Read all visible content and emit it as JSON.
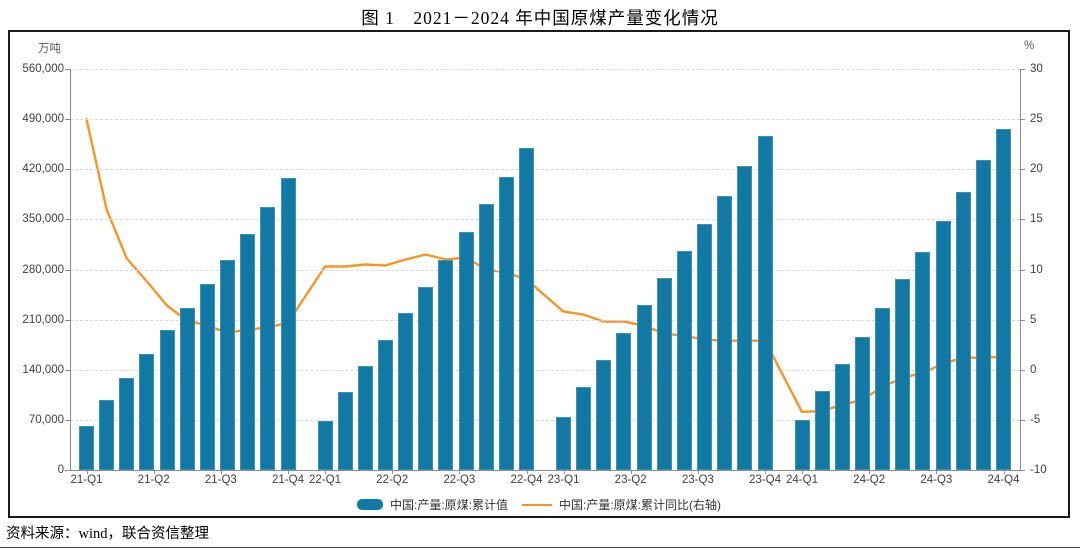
{
  "title": "图 1　2021－2024 年中国原煤产量变化情况",
  "source": "资料来源：wind，联合资信整理",
  "legend": {
    "bar_label": "中国:产量:原煤:累计值",
    "line_label": "中国:产量:原煤:累计同比(右轴)"
  },
  "chart_data": {
    "type": "bar",
    "subtype": "bar+line combo, monthly cumulative values grouped by year",
    "title": "图 1　2021－2024 年中国原煤产量变化情况",
    "grid": "horizontal dashed",
    "legend_position": "bottom center",
    "years": [
      "2021",
      "2022",
      "2023",
      "2024"
    ],
    "points_per_year": 11,
    "left_axis": {
      "title": "万吨",
      "min": 0,
      "max": 560000,
      "step": 70000,
      "tick_labels": [
        "560,000",
        "490,000",
        "420,000",
        "350,000",
        "280,000",
        "210,000",
        "140,000",
        "70,000",
        "0"
      ]
    },
    "right_axis": {
      "title": "%",
      "min": -10,
      "max": 30,
      "step": 5,
      "tick_labels": [
        "30",
        "25",
        "20",
        "15",
        "10",
        "5",
        "0",
        "-5",
        "-10"
      ]
    },
    "x_tick_labels": [
      "21-Q1",
      "21-Q2",
      "21-Q3",
      "21-Q4",
      "22-Q1",
      "22-Q2",
      "22-Q3",
      "22-Q4",
      "23-Q1",
      "23-Q2",
      "23-Q3",
      "23-Q4",
      "24-Q1",
      "24-Q2",
      "24-Q3",
      "24-Q4"
    ],
    "series": [
      {
        "name": "中国:产量:原煤:累计值",
        "type": "bar",
        "axis": "left",
        "color": "#1279a5",
        "values": [
          61800,
          97100,
          129000,
          162400,
          195300,
          225600,
          259700,
          292900,
          329700,
          367000,
          407100,
          68700,
          108300,
          144800,
          181100,
          219200,
          256200,
          293300,
          331700,
          370900,
          409400,
          449600,
          73400,
          115300,
          153400,
          191200,
          230200,
          267900,
          305700,
          344200,
          383200,
          424000,
          465800,
          70500,
          110600,
          148400,
          186100,
          226600,
          266600,
          304900,
          347600,
          388900,
          432400,
          475900
        ]
      },
      {
        "name": "中国:产量:原煤:累计同比(右轴)",
        "type": "line",
        "axis": "right",
        "color": "#f79428",
        "values": [
          25.0,
          16.0,
          11.1,
          8.8,
          6.4,
          4.9,
          4.4,
          3.7,
          4.0,
          4.2,
          4.7,
          10.3,
          10.3,
          10.5,
          10.4,
          11.0,
          11.5,
          11.0,
          11.2,
          10.0,
          9.7,
          9.0,
          5.8,
          5.5,
          4.8,
          4.8,
          4.4,
          3.6,
          3.4,
          3.0,
          2.9,
          2.9,
          2.9,
          -4.2,
          -4.1,
          -3.5,
          -3.0,
          -1.7,
          -0.8,
          -0.3,
          0.6,
          1.2,
          1.2,
          1.3
        ]
      }
    ]
  }
}
